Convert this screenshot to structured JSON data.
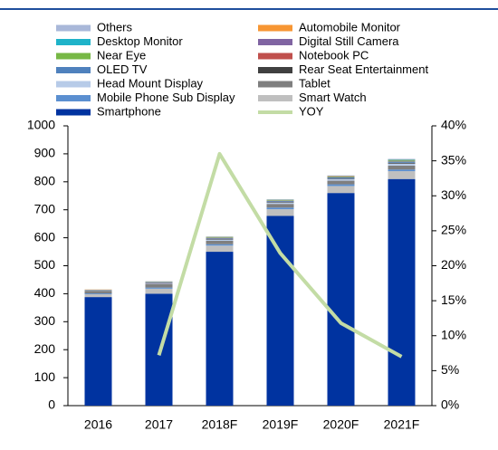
{
  "chart_data": {
    "type": "bar",
    "stacked": true,
    "categories": [
      "2016",
      "2017",
      "2018F",
      "2019F",
      "2020F",
      "2021F"
    ],
    "series": [
      {
        "name": "Others",
        "color": "#a9b8d9",
        "values": [
          0,
          1,
          1,
          1,
          1,
          2
        ]
      },
      {
        "name": "Automobile Monitor",
        "color": "#f79633",
        "values": [
          1,
          1,
          1,
          1,
          1,
          1
        ]
      },
      {
        "name": "Desktop Monitor",
        "color": "#1fb3c9",
        "values": [
          1,
          1,
          1,
          1,
          1,
          2
        ]
      },
      {
        "name": "Digital Still Camera",
        "color": "#8064a2",
        "values": [
          0,
          1,
          1,
          1,
          1,
          1
        ]
      },
      {
        "name": "Near Eye",
        "color": "#77b845",
        "values": [
          0,
          1,
          2,
          2,
          2,
          3
        ]
      },
      {
        "name": "Notebook PC",
        "color": "#c0504d",
        "values": [
          1,
          1,
          1,
          1,
          1,
          1
        ]
      },
      {
        "name": "OLED TV",
        "color": "#4f81bd",
        "values": [
          1,
          2,
          3,
          3,
          4,
          4
        ]
      },
      {
        "name": "Rear Seat Entertainment",
        "color": "#404040",
        "values": [
          1,
          1,
          2,
          2,
          2,
          3
        ]
      },
      {
        "name": "Head Mount Display",
        "color": "#b7cbe8",
        "values": [
          1,
          2,
          4,
          5,
          6,
          7
        ]
      },
      {
        "name": "Tablet",
        "color": "#7f7f7f",
        "values": [
          8,
          12,
          12,
          13,
          13,
          14
        ]
      },
      {
        "name": "Mobile Phone Sub Display",
        "color": "#5b8fd0",
        "values": [
          3,
          4,
          5,
          6,
          6,
          6
        ]
      },
      {
        "name": "Smart Watch",
        "color": "#bfbfbf",
        "values": [
          10,
          18,
          22,
          24,
          25,
          28
        ]
      },
      {
        "name": "Smartphone",
        "color": "#0033a0",
        "values": [
          388,
          400,
          550,
          678,
          760,
          810
        ]
      },
      {
        "name": "YOY",
        "color": "#c3dca5",
        "type": "line",
        "axis": "y2",
        "values": [
          null,
          7.2,
          36,
          21.8,
          11.8,
          7
        ]
      }
    ],
    "ylim": [
      0,
      1000
    ],
    "yticks": [
      0,
      100,
      200,
      300,
      400,
      500,
      600,
      700,
      800,
      900,
      1000
    ],
    "y2lim": [
      0,
      40
    ],
    "y2ticks": [
      {
        "value": 0,
        "label": "0%"
      },
      {
        "value": 5,
        "label": "5%"
      },
      {
        "value": 10,
        "label": "10%"
      },
      {
        "value": 15,
        "label": "15%"
      },
      {
        "value": 20,
        "label": "20%"
      },
      {
        "value": 25,
        "label": "25%"
      },
      {
        "value": 30,
        "label": "30%"
      },
      {
        "value": 35,
        "label": "35%"
      },
      {
        "value": 40,
        "label": "40%"
      }
    ]
  }
}
